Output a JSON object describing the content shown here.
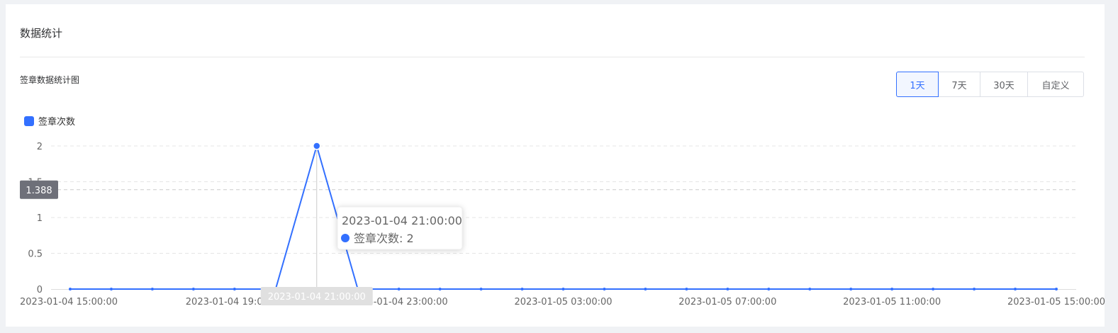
{
  "card": {
    "title": "数据统计"
  },
  "chart_section": {
    "title": "签章数据统计图"
  },
  "range_buttons": [
    {
      "label": "1天",
      "active": true
    },
    {
      "label": "7天",
      "active": false
    },
    {
      "label": "30天",
      "active": false
    },
    {
      "label": "自定义",
      "active": false
    }
  ],
  "colors": {
    "series": "#3370ff",
    "grid": "#e5e5e5",
    "axis_text": "#666666"
  },
  "chart_data": {
    "type": "line",
    "title": "",
    "xlabel": "",
    "ylabel": "",
    "legend": {
      "position": "top-left",
      "entries": [
        "签章次数"
      ]
    },
    "grid": true,
    "ylim": [
      0,
      2
    ],
    "yticks": [
      "0",
      "0.5",
      "1",
      "1.5",
      "2"
    ],
    "x": [
      "2023-01-04 15:00:00",
      "2023-01-04 16:00:00",
      "2023-01-04 17:00:00",
      "2023-01-04 18:00:00",
      "2023-01-04 19:00:00",
      "2023-01-04 20:00:00",
      "2023-01-04 21:00:00",
      "2023-01-04 22:00:00",
      "2023-01-04 23:00:00",
      "2023-01-05 00:00:00",
      "2023-01-05 01:00:00",
      "2023-01-05 02:00:00",
      "2023-01-05 03:00:00",
      "2023-01-05 04:00:00",
      "2023-01-05 05:00:00",
      "2023-01-05 06:00:00",
      "2023-01-05 07:00:00",
      "2023-01-05 08:00:00",
      "2023-01-05 09:00:00",
      "2023-01-05 10:00:00",
      "2023-01-05 11:00:00",
      "2023-01-05 12:00:00",
      "2023-01-05 13:00:00",
      "2023-01-05 14:00:00",
      "2023-01-05 15:00:00"
    ],
    "xtick_labels": [
      {
        "index": 0,
        "label": "2023-01-04 15:00:00"
      },
      {
        "index": 4,
        "label": "2023-01-04 19:00:00"
      },
      {
        "index": 8,
        "label": "2023-01-04 23:00:00"
      },
      {
        "index": 12,
        "label": "2023-01-05 03:00:00"
      },
      {
        "index": 16,
        "label": "2023-01-05 07:00:00"
      },
      {
        "index": 20,
        "label": "2023-01-05 11:00:00"
      },
      {
        "index": 24,
        "label": "2023-01-05 15:00:00"
      }
    ],
    "series": [
      {
        "name": "签章次数",
        "values": [
          0,
          0,
          0,
          0,
          0,
          0,
          2,
          0,
          0,
          0,
          0,
          0,
          0,
          0,
          0,
          0,
          0,
          0,
          0,
          0,
          0,
          0,
          0,
          0,
          0
        ]
      }
    ],
    "tooltip": {
      "index": 6,
      "title": "2023-01-04 21:00:00",
      "series_label": "签章次数",
      "value": "2"
    },
    "axis_pointer": {
      "x_label": "2023-01-04 21:00:00",
      "y_label": "1.388",
      "y_value": 1.388
    }
  }
}
